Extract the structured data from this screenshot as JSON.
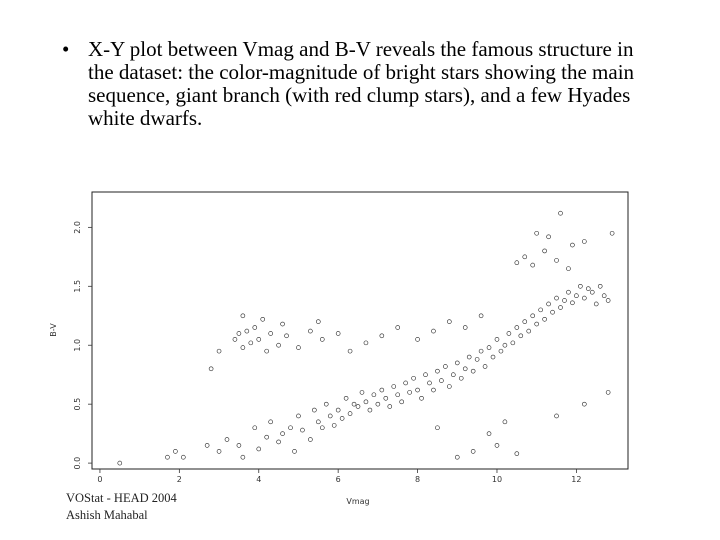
{
  "slide": {
    "bullet_symbol": "•",
    "bullet_text": "X-Y plot between Vmag and B-V reveals the famous structure in the dataset: the color-magnitude of bright stars showing the main sequence, giant branch (with red clump stars), and a few Hyades white dwarfs.",
    "footer_line1": "VOStat - HEAD 2004",
    "footer_line2": "Ashish Mahabal"
  },
  "chart_data": {
    "type": "scatter",
    "title": "",
    "xlabel": "Vmag",
    "ylabel": "B-V",
    "xlim": [
      -0.2,
      13.3
    ],
    "ylim": [
      -0.05,
      2.3
    ],
    "x_ticks": [
      0,
      2,
      4,
      6,
      8,
      10,
      12
    ],
    "y_ticks": [
      0.0,
      0.5,
      1.0,
      1.5,
      2.0
    ],
    "x_tick_labels": [
      "0",
      "2",
      "4",
      "6",
      "8",
      "10",
      "12"
    ],
    "y_tick_labels": [
      "0.0",
      "0.5",
      "1.0",
      "1.5",
      "2.0"
    ],
    "marker": "open-circle",
    "grid": false,
    "point_color": "#222222",
    "series": [
      {
        "values": [
          [
            0.5,
            0.0
          ],
          [
            1.7,
            0.05
          ],
          [
            1.9,
            0.1
          ],
          [
            2.1,
            0.05
          ],
          [
            2.7,
            0.15
          ],
          [
            3.0,
            0.1
          ],
          [
            3.2,
            0.2
          ],
          [
            3.5,
            0.15
          ],
          [
            3.6,
            0.05
          ],
          [
            3.9,
            0.3
          ],
          [
            4.0,
            0.12
          ],
          [
            4.2,
            0.22
          ],
          [
            4.3,
            0.35
          ],
          [
            4.5,
            0.18
          ],
          [
            4.6,
            0.25
          ],
          [
            4.8,
            0.3
          ],
          [
            4.9,
            0.1
          ],
          [
            5.0,
            0.4
          ],
          [
            5.1,
            0.28
          ],
          [
            5.3,
            0.2
          ],
          [
            5.4,
            0.45
          ],
          [
            5.5,
            0.35
          ],
          [
            5.6,
            0.3
          ],
          [
            5.7,
            0.5
          ],
          [
            5.8,
            0.4
          ],
          [
            5.9,
            0.32
          ],
          [
            6.0,
            0.45
          ],
          [
            6.1,
            0.38
          ],
          [
            6.2,
            0.55
          ],
          [
            6.3,
            0.42
          ],
          [
            6.4,
            0.5
          ],
          [
            6.5,
            0.48
          ],
          [
            6.6,
            0.6
          ],
          [
            6.7,
            0.52
          ],
          [
            6.8,
            0.45
          ],
          [
            6.9,
            0.58
          ],
          [
            7.0,
            0.5
          ],
          [
            7.1,
            0.62
          ],
          [
            7.2,
            0.55
          ],
          [
            7.3,
            0.48
          ],
          [
            7.4,
            0.65
          ],
          [
            7.5,
            0.58
          ],
          [
            7.6,
            0.52
          ],
          [
            7.7,
            0.68
          ],
          [
            7.8,
            0.6
          ],
          [
            7.9,
            0.72
          ],
          [
            8.0,
            0.62
          ],
          [
            8.1,
            0.55
          ],
          [
            8.2,
            0.75
          ],
          [
            8.3,
            0.68
          ],
          [
            8.4,
            0.62
          ],
          [
            8.5,
            0.78
          ],
          [
            8.6,
            0.7
          ],
          [
            8.7,
            0.82
          ],
          [
            8.8,
            0.65
          ],
          [
            8.9,
            0.75
          ],
          [
            9.0,
            0.85
          ],
          [
            9.1,
            0.72
          ],
          [
            9.2,
            0.8
          ],
          [
            9.3,
            0.9
          ],
          [
            9.4,
            0.78
          ],
          [
            9.5,
            0.88
          ],
          [
            9.6,
            0.95
          ],
          [
            9.7,
            0.82
          ],
          [
            9.8,
            0.98
          ],
          [
            9.9,
            0.9
          ],
          [
            10.0,
            1.05
          ],
          [
            10.1,
            0.95
          ],
          [
            10.2,
            1.0
          ],
          [
            10.3,
            1.1
          ],
          [
            10.4,
            1.02
          ],
          [
            10.5,
            1.15
          ],
          [
            10.6,
            1.08
          ],
          [
            10.7,
            1.2
          ],
          [
            10.8,
            1.12
          ],
          [
            10.9,
            1.25
          ],
          [
            11.0,
            1.18
          ],
          [
            11.1,
            1.3
          ],
          [
            11.2,
            1.22
          ],
          [
            11.3,
            1.35
          ],
          [
            11.4,
            1.28
          ],
          [
            11.5,
            1.4
          ],
          [
            11.6,
            1.32
          ],
          [
            11.7,
            1.38
          ],
          [
            11.8,
            1.45
          ],
          [
            11.9,
            1.36
          ],
          [
            12.0,
            1.42
          ],
          [
            12.1,
            1.5
          ],
          [
            12.2,
            1.4
          ],
          [
            12.3,
            1.48
          ],
          [
            12.4,
            1.45
          ],
          [
            12.5,
            1.35
          ],
          [
            12.6,
            1.5
          ],
          [
            12.7,
            1.42
          ],
          [
            12.8,
            1.38
          ],
          [
            3.4,
            1.05
          ],
          [
            3.5,
            1.1
          ],
          [
            3.6,
            0.98
          ],
          [
            3.7,
            1.12
          ],
          [
            3.8,
            1.02
          ],
          [
            3.9,
            1.15
          ],
          [
            4.0,
            1.05
          ],
          [
            4.2,
            0.95
          ],
          [
            4.3,
            1.1
          ],
          [
            4.5,
            1.0
          ],
          [
            4.7,
            1.08
          ],
          [
            5.0,
            0.98
          ],
          [
            5.3,
            1.12
          ],
          [
            5.6,
            1.05
          ],
          [
            6.0,
            1.1
          ],
          [
            6.3,
            0.95
          ],
          [
            6.7,
            1.02
          ],
          [
            7.1,
            1.08
          ],
          [
            7.5,
            1.15
          ],
          [
            8.0,
            1.05
          ],
          [
            8.4,
            1.12
          ],
          [
            8.8,
            1.2
          ],
          [
            9.2,
            1.15
          ],
          [
            9.6,
            1.25
          ],
          [
            3.6,
            1.25
          ],
          [
            4.1,
            1.22
          ],
          [
            4.6,
            1.18
          ],
          [
            5.5,
            1.2
          ],
          [
            2.8,
            0.8
          ],
          [
            3.0,
            0.95
          ],
          [
            10.5,
            1.7
          ],
          [
            10.7,
            1.75
          ],
          [
            10.9,
            1.68
          ],
          [
            11.2,
            1.8
          ],
          [
            11.5,
            1.72
          ],
          [
            11.8,
            1.65
          ],
          [
            11.0,
            1.95
          ],
          [
            11.3,
            1.92
          ],
          [
            11.9,
            1.85
          ],
          [
            12.2,
            1.88
          ],
          [
            11.6,
            2.12
          ],
          [
            12.9,
            1.95
          ],
          [
            9.0,
            0.05
          ],
          [
            9.4,
            0.1
          ],
          [
            10.0,
            0.15
          ],
          [
            10.5,
            0.08
          ],
          [
            8.5,
            0.3
          ],
          [
            9.8,
            0.25
          ],
          [
            10.2,
            0.35
          ],
          [
            11.5,
            0.4
          ],
          [
            12.2,
            0.5
          ],
          [
            12.8,
            0.6
          ]
        ]
      }
    ]
  }
}
